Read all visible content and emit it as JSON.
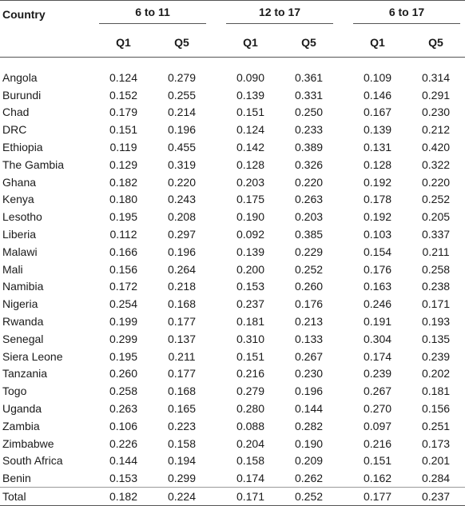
{
  "table": {
    "country_header": "Country",
    "groups": [
      "6 to 11",
      "12 to 17",
      "6 to 17"
    ],
    "subheaders": [
      "Q1",
      "Q5"
    ],
    "rows": [
      {
        "country": "Angola",
        "values": [
          "0.124",
          "0.279",
          "0.090",
          "0.361",
          "0.109",
          "0.314"
        ]
      },
      {
        "country": "Burundi",
        "values": [
          "0.152",
          "0.255",
          "0.139",
          "0.331",
          "0.146",
          "0.291"
        ]
      },
      {
        "country": "Chad",
        "values": [
          "0.179",
          "0.214",
          "0.151",
          "0.250",
          "0.167",
          "0.230"
        ]
      },
      {
        "country": "DRC",
        "values": [
          "0.151",
          "0.196",
          "0.124",
          "0.233",
          "0.139",
          "0.212"
        ]
      },
      {
        "country": "Ethiopia",
        "values": [
          "0.119",
          "0.455",
          "0.142",
          "0.389",
          "0.131",
          "0.420"
        ]
      },
      {
        "country": "The Gambia",
        "values": [
          "0.129",
          "0.319",
          "0.128",
          "0.326",
          "0.128",
          "0.322"
        ]
      },
      {
        "country": "Ghana",
        "values": [
          "0.182",
          "0.220",
          "0.203",
          "0.220",
          "0.192",
          "0.220"
        ]
      },
      {
        "country": "Kenya",
        "values": [
          "0.180",
          "0.243",
          "0.175",
          "0.263",
          "0.178",
          "0.252"
        ]
      },
      {
        "country": "Lesotho",
        "values": [
          "0.195",
          "0.208",
          "0.190",
          "0.203",
          "0.192",
          "0.205"
        ]
      },
      {
        "country": "Liberia",
        "values": [
          "0.112",
          "0.297",
          "0.092",
          "0.385",
          "0.103",
          "0.337"
        ]
      },
      {
        "country": "Malawi",
        "values": [
          "0.166",
          "0.196",
          "0.139",
          "0.229",
          "0.154",
          "0.211"
        ]
      },
      {
        "country": "Mali",
        "values": [
          "0.156",
          "0.264",
          "0.200",
          "0.252",
          "0.176",
          "0.258"
        ]
      },
      {
        "country": "Namibia",
        "values": [
          "0.172",
          "0.218",
          "0.153",
          "0.260",
          "0.163",
          "0.238"
        ]
      },
      {
        "country": "Nigeria",
        "values": [
          "0.254",
          "0.168",
          "0.237",
          "0.176",
          "0.246",
          "0.171"
        ]
      },
      {
        "country": "Rwanda",
        "values": [
          "0.199",
          "0.177",
          "0.181",
          "0.213",
          "0.191",
          "0.193"
        ]
      },
      {
        "country": "Senegal",
        "values": [
          "0.299",
          "0.137",
          "0.310",
          "0.133",
          "0.304",
          "0.135"
        ]
      },
      {
        "country": "Siera Leone",
        "values": [
          "0.195",
          "0.211",
          "0.151",
          "0.267",
          "0.174",
          "0.239"
        ]
      },
      {
        "country": "Tanzania",
        "values": [
          "0.260",
          "0.177",
          "0.216",
          "0.230",
          "0.239",
          "0.202"
        ]
      },
      {
        "country": "Togo",
        "values": [
          "0.258",
          "0.168",
          "0.279",
          "0.196",
          "0.267",
          "0.181"
        ]
      },
      {
        "country": "Uganda",
        "values": [
          "0.263",
          "0.165",
          "0.280",
          "0.144",
          "0.270",
          "0.156"
        ]
      },
      {
        "country": "Zambia",
        "values": [
          "0.106",
          "0.223",
          "0.088",
          "0.282",
          "0.097",
          "0.251"
        ]
      },
      {
        "country": "Zimbabwe",
        "values": [
          "0.226",
          "0.158",
          "0.204",
          "0.190",
          "0.216",
          "0.173"
        ]
      },
      {
        "country": "South Africa",
        "values": [
          "0.144",
          "0.194",
          "0.158",
          "0.209",
          "0.151",
          "0.201"
        ]
      },
      {
        "country": "Benin",
        "values": [
          "0.153",
          "0.299",
          "0.174",
          "0.262",
          "0.162",
          "0.284"
        ]
      },
      {
        "country": "Total",
        "values": [
          "0.182",
          "0.224",
          "0.171",
          "0.252",
          "0.177",
          "0.237"
        ]
      }
    ]
  }
}
